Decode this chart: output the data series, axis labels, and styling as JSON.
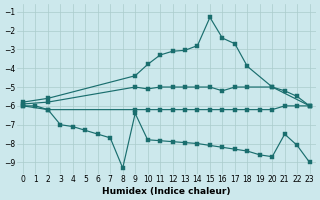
{
  "background_color": "#cce8ec",
  "grid_color": "#aacccc",
  "line_color": "#1a6e6e",
  "xlabel": "Humidex (Indice chaleur)",
  "ylim": [
    -9.6,
    -0.6
  ],
  "xlim": [
    -0.5,
    23.5
  ],
  "yticks": [
    -9,
    -8,
    -7,
    -6,
    -5,
    -4,
    -3,
    -2,
    -1
  ],
  "xticks": [
    0,
    1,
    2,
    3,
    4,
    5,
    6,
    7,
    8,
    9,
    10,
    11,
    12,
    13,
    14,
    15,
    16,
    17,
    18,
    19,
    20,
    21,
    22,
    23
  ],
  "line1_x": [
    0,
    2,
    9,
    10,
    11,
    12,
    13,
    14,
    15,
    16,
    17,
    18,
    20,
    23
  ],
  "line1_y": [
    -5.8,
    -5.6,
    -4.4,
    -3.8,
    -3.3,
    -3.1,
    -3.05,
    -2.8,
    -1.3,
    -2.4,
    -2.7,
    -3.9,
    -5.0,
    -6.0
  ],
  "line2_x": [
    0,
    2,
    9,
    10,
    11,
    12,
    13,
    14,
    15,
    16,
    17,
    18,
    20,
    21,
    22,
    23
  ],
  "line2_y": [
    -5.9,
    -5.8,
    -5.0,
    -5.1,
    -5.0,
    -5.0,
    -5.0,
    -5.0,
    -5.0,
    -5.2,
    -5.0,
    -5.0,
    -5.0,
    -5.2,
    -5.5,
    -6.0
  ],
  "line3_x": [
    0,
    1,
    2,
    9,
    10,
    11,
    12,
    13,
    14,
    15,
    16,
    17,
    18,
    19,
    20,
    21,
    22,
    23
  ],
  "line3_y": [
    -6.0,
    -6.0,
    -6.2,
    -6.2,
    -6.2,
    -6.2,
    -6.2,
    -6.2,
    -6.2,
    -6.2,
    -6.2,
    -6.2,
    -6.2,
    -6.2,
    -6.2,
    -6.0,
    -6.0,
    -6.0
  ],
  "line4_x": [
    0,
    2,
    3,
    4,
    5,
    6,
    7,
    8,
    9,
    10,
    11,
    12,
    13,
    14,
    15,
    16,
    17,
    18,
    19,
    20,
    21,
    22,
    23
  ],
  "line4_y": [
    -6.0,
    -6.2,
    -7.0,
    -7.1,
    -7.3,
    -7.5,
    -7.7,
    -9.3,
    -6.4,
    -7.8,
    -7.85,
    -7.9,
    -7.95,
    -8.0,
    -8.1,
    -8.2,
    -8.3,
    -8.4,
    -8.6,
    -8.7,
    -7.5,
    -8.1,
    -9.0
  ],
  "marker_size": 2.5,
  "line_width": 0.85,
  "tick_fontsize": 5.5,
  "xlabel_fontsize": 6.5
}
